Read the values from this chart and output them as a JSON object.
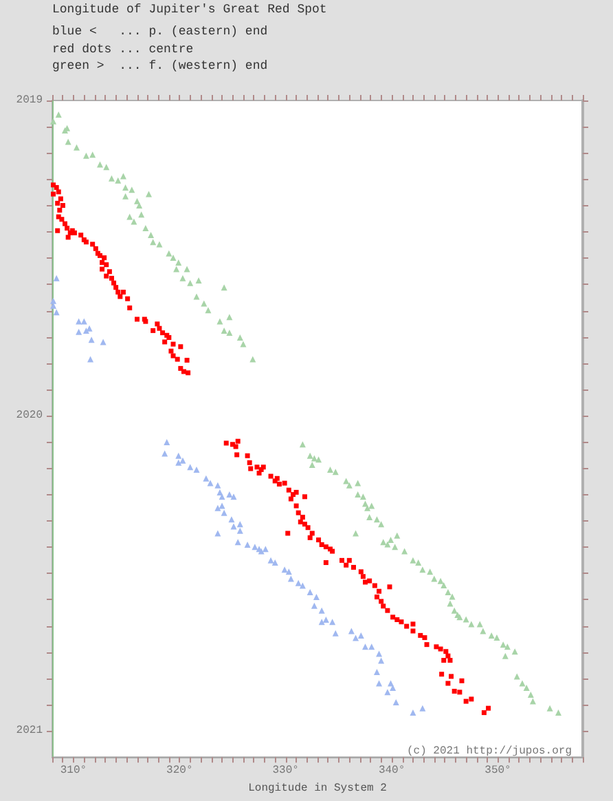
{
  "chart_data": {
    "type": "scatter",
    "title": "Longitude of Jupiter's Great Red Spot",
    "subtitle": "blue <   ... p. (eastern) end\nred dots ... centre\ngreen >  ... f. (western) end",
    "xlabel": "Longitude in System 2",
    "annotations": [
      "(c) 2021 http://jupos.org"
    ],
    "xlim": [
      308,
      358
    ],
    "xticks": [
      {
        "value": 308,
        "label": null
      },
      {
        "value": 309,
        "label": null
      },
      {
        "value": 310,
        "label": "310°"
      },
      {
        "value": 311,
        "label": null
      },
      {
        "value": 312,
        "label": null
      },
      {
        "value": 313,
        "label": null
      },
      {
        "value": 314,
        "label": null
      },
      {
        "value": 315,
        "label": null
      },
      {
        "value": 316,
        "label": null
      },
      {
        "value": 317,
        "label": null
      },
      {
        "value": 318,
        "label": null
      },
      {
        "value": 319,
        "label": null
      },
      {
        "value": 320,
        "label": "320°"
      },
      {
        "value": 321,
        "label": null
      },
      {
        "value": 322,
        "label": null
      },
      {
        "value": 323,
        "label": null
      },
      {
        "value": 324,
        "label": null
      },
      {
        "value": 325,
        "label": null
      },
      {
        "value": 326,
        "label": null
      },
      {
        "value": 327,
        "label": null
      },
      {
        "value": 328,
        "label": null
      },
      {
        "value": 329,
        "label": null
      },
      {
        "value": 330,
        "label": "330°"
      },
      {
        "value": 331,
        "label": null
      },
      {
        "value": 332,
        "label": null
      },
      {
        "value": 333,
        "label": null
      },
      {
        "value": 334,
        "label": null
      },
      {
        "value": 335,
        "label": null
      },
      {
        "value": 336,
        "label": null
      },
      {
        "value": 337,
        "label": null
      },
      {
        "value": 338,
        "label": null
      },
      {
        "value": 339,
        "label": null
      },
      {
        "value": 340,
        "label": "340°"
      },
      {
        "value": 341,
        "label": null
      },
      {
        "value": 342,
        "label": null
      },
      {
        "value": 343,
        "label": null
      },
      {
        "value": 344,
        "label": null
      },
      {
        "value": 345,
        "label": null
      },
      {
        "value": 346,
        "label": null
      },
      {
        "value": 347,
        "label": null
      },
      {
        "value": 348,
        "label": null
      },
      {
        "value": 349,
        "label": null
      },
      {
        "value": 350,
        "label": "350°"
      },
      {
        "value": 351,
        "label": null
      },
      {
        "value": 352,
        "label": null
      },
      {
        "value": 353,
        "label": null
      },
      {
        "value": 354,
        "label": null
      },
      {
        "value": 355,
        "label": null
      },
      {
        "value": 356,
        "label": null
      },
      {
        "value": 357,
        "label": null
      },
      {
        "value": 358,
        "label": null
      }
    ],
    "ylim": [
      2021.083,
      2019
    ],
    "yticks": [
      2019,
      {
        "value": 2019.083,
        "label": null
      },
      {
        "value": 2019.167,
        "label": null
      },
      {
        "value": 2019.25,
        "label": null
      },
      {
        "value": 2019.333,
        "label": null
      },
      {
        "value": 2019.417,
        "label": null
      },
      {
        "value": 2019.5,
        "label": null
      },
      {
        "value": 2019.583,
        "label": null
      },
      {
        "value": 2019.667,
        "label": null
      },
      {
        "value": 2019.75,
        "label": null
      },
      {
        "value": 2019.833,
        "label": null
      },
      {
        "value": 2019.917,
        "label": null
      },
      2020,
      {
        "value": 2020.083,
        "label": null
      },
      {
        "value": 2020.167,
        "label": null
      },
      {
        "value": 2020.25,
        "label": null
      },
      {
        "value": 2020.333,
        "label": null
      },
      {
        "value": 2020.417,
        "label": null
      },
      {
        "value": 2020.5,
        "label": null
      },
      {
        "value": 2020.583,
        "label": null
      },
      {
        "value": 2020.667,
        "label": null
      },
      {
        "value": 2020.75,
        "label": null
      },
      {
        "value": 2020.833,
        "label": null
      },
      {
        "value": 2020.917,
        "label": null
      },
      2021
    ],
    "series": [
      {
        "color": "#a0b8f0",
        "marker": "triangle",
        "x": [
          308.4,
          308.1,
          308.1,
          308.4,
          310.5,
          311.0,
          310.5,
          311.2,
          311.5,
          311.7,
          312.8,
          311.6,
          318.8,
          318.6,
          319.9,
          319.9,
          320.3,
          321.0,
          321.6,
          322.5,
          322.9,
          323.6,
          323.8,
          324.0,
          324.7,
          325.1,
          323.6,
          324.0,
          324.2,
          324.9,
          325.1,
          325.7,
          325.7,
          323.6,
          325.5,
          326.4,
          327.1,
          327.5,
          327.7,
          328.1,
          328.6,
          329.0,
          329.9,
          330.3,
          330.5,
          331.2,
          331.6,
          332.3,
          332.9,
          332.7,
          333.4,
          333.4,
          333.8,
          334.4,
          334.7,
          336.2,
          336.6,
          337.1,
          337.5,
          338.1,
          338.8,
          339.0,
          338.6,
          338.8,
          339.9,
          340.1,
          339.6,
          340.4,
          342.0,
          342.9
        ],
        "values": [
          2019.564,
          2019.636,
          2019.651,
          2019.672,
          2019.701,
          2019.701,
          2019.734,
          2019.73,
          2019.723,
          2019.759,
          2019.766,
          2019.821,
          2020.084,
          2020.12,
          2020.127,
          2020.149,
          2020.142,
          2020.163,
          2020.171,
          2020.199,
          2020.214,
          2020.221,
          2020.243,
          2020.257,
          2020.25,
          2020.257,
          2020.293,
          2020.286,
          2020.308,
          2020.329,
          2020.351,
          2020.344,
          2020.365,
          2020.373,
          2020.401,
          2020.409,
          2020.416,
          2020.423,
          2020.43,
          2020.423,
          2020.459,
          2020.466,
          2020.488,
          2020.495,
          2020.517,
          2020.531,
          2020.539,
          2020.56,
          2020.575,
          2020.603,
          2020.618,
          2020.654,
          2020.647,
          2020.654,
          2020.69,
          2020.683,
          2020.705,
          2020.697,
          2020.733,
          2020.733,
          2020.755,
          2020.777,
          2020.813,
          2020.849,
          2020.849,
          2020.863,
          2020.877,
          2020.909,
          2020.942,
          2020.928
        ]
      },
      {
        "color": "#ff0000",
        "marker": "square",
        "x": [
          308.1,
          308.4,
          308.6,
          308.1,
          308.8,
          308.5,
          309.0,
          308.7,
          308.6,
          308.9,
          309.2,
          308.5,
          309.4,
          309.7,
          309.9,
          309.5,
          310.1,
          310.7,
          311.0,
          311.2,
          311.8,
          312.1,
          312.3,
          312.5,
          312.9,
          312.7,
          313.1,
          312.7,
          313.4,
          313.1,
          313.6,
          313.8,
          314.0,
          314.2,
          314.4,
          314.7,
          315.1,
          315.3,
          316.0,
          316.7,
          316.8,
          317.9,
          318.1,
          317.5,
          318.4,
          318.8,
          319.0,
          318.6,
          319.4,
          320.1,
          319.2,
          319.4,
          319.8,
          320.7,
          320.1,
          320.4,
          320.8,
          324.4,
          325.0,
          325.5,
          325.3,
          326.4,
          325.4,
          326.6,
          326.7,
          327.3,
          327.7,
          327.9,
          327.5,
          328.6,
          329.0,
          329.2,
          329.4,
          329.9,
          330.3,
          330.7,
          331.0,
          331.8,
          330.5,
          331.0,
          331.2,
          331.6,
          331.4,
          331.8,
          332.1,
          330.2,
          332.5,
          332.3,
          333.1,
          333.4,
          333.8,
          334.2,
          333.8,
          334.4,
          335.3,
          335.7,
          336.0,
          336.4,
          337.1,
          337.3,
          337.5,
          337.9,
          338.4,
          338.8,
          338.6,
          339.0,
          339.2,
          339.8,
          339.6,
          340.1,
          340.5,
          340.9,
          342.0,
          341.4,
          342.0,
          342.7,
          343.1,
          343.3,
          344.2,
          344.6,
          345.1,
          345.3,
          345.5,
          344.9,
          344.7,
          345.6,
          345.3,
          346.6,
          345.9,
          346.4,
          347.0,
          347.5,
          348.7,
          349.1
        ],
        "values": [
          2019.268,
          2019.276,
          2019.29,
          2019.297,
          2019.312,
          2019.326,
          2019.333,
          2019.348,
          2019.369,
          2019.377,
          2019.391,
          2019.413,
          2019.405,
          2019.42,
          2019.413,
          2019.434,
          2019.42,
          2019.427,
          2019.442,
          2019.449,
          2019.456,
          2019.47,
          2019.485,
          2019.492,
          2019.499,
          2019.514,
          2019.521,
          2019.535,
          2019.543,
          2019.557,
          2019.564,
          2019.579,
          2019.593,
          2019.608,
          2019.622,
          2019.608,
          2019.629,
          2019.658,
          2019.694,
          2019.694,
          2019.701,
          2019.709,
          2019.723,
          2019.73,
          2019.737,
          2019.745,
          2019.752,
          2019.766,
          2019.773,
          2019.781,
          2019.795,
          2019.81,
          2019.821,
          2019.824,
          2019.85,
          2019.86,
          2019.864,
          2020.087,
          2020.091,
          2020.081,
          2020.098,
          2020.127,
          2020.124,
          2020.149,
          2020.168,
          2020.163,
          2020.171,
          2020.163,
          2020.182,
          2020.192,
          2020.207,
          2020.199,
          2020.217,
          2020.214,
          2020.236,
          2020.25,
          2020.243,
          2020.257,
          2020.264,
          2020.286,
          2020.308,
          2020.322,
          2020.337,
          2020.344,
          2020.355,
          2020.373,
          2020.373,
          2020.387,
          2020.394,
          2020.409,
          2020.416,
          2020.423,
          2020.466,
          2020.43,
          2020.459,
          2020.474,
          2020.459,
          2020.481,
          2020.495,
          2020.51,
          2020.528,
          2020.524,
          2020.539,
          2020.557,
          2020.575,
          2020.589,
          2020.604,
          2020.543,
          2020.618,
          2020.639,
          2020.647,
          2020.654,
          2020.661,
          2020.668,
          2020.683,
          2020.697,
          2020.704,
          2020.726,
          2020.733,
          2020.74,
          2020.748,
          2020.762,
          2020.776,
          2020.776,
          2020.82,
          2020.827,
          2020.849,
          2020.841,
          2020.874,
          2020.877,
          2020.906,
          2020.899,
          2020.942,
          2020.928
        ]
      },
      {
        "color": "#a8d4a8",
        "marker": "triangle",
        "x": [
          308.6,
          308.1,
          309.4,
          309.2,
          309.5,
          310.3,
          311.2,
          311.8,
          312.5,
          313.1,
          313.6,
          314.2,
          314.7,
          314.9,
          315.5,
          316.0,
          317.1,
          314.9,
          316.2,
          315.3,
          315.7,
          316.4,
          316.8,
          317.3,
          317.5,
          318.1,
          319.0,
          319.4,
          319.9,
          319.7,
          320.7,
          320.3,
          321.0,
          321.8,
          321.6,
          322.3,
          322.7,
          324.2,
          323.8,
          324.7,
          324.2,
          324.7,
          325.7,
          326.0,
          326.9,
          331.6,
          332.3,
          332.7,
          333.1,
          332.5,
          334.2,
          334.7,
          335.7,
          336.0,
          336.8,
          336.8,
          337.3,
          337.5,
          337.7,
          338.1,
          337.9,
          338.6,
          339.0,
          339.2,
          336.6,
          339.9,
          339.6,
          340.3,
          340.5,
          341.2,
          342.0,
          342.5,
          342.9,
          343.6,
          344.0,
          344.6,
          344.9,
          345.3,
          345.7,
          345.5,
          345.9,
          346.2,
          346.4,
          347.0,
          347.5,
          348.3,
          348.6,
          349.4,
          349.9,
          350.5,
          350.9,
          351.6,
          350.7,
          351.8,
          352.3,
          352.7,
          353.1,
          353.3,
          354.9,
          355.7
        ],
        "values": [
          2019.045,
          2019.066,
          2019.088,
          2019.095,
          2019.131,
          2019.149,
          2019.175,
          2019.172,
          2019.203,
          2019.211,
          2019.247,
          2019.254,
          2019.24,
          2019.276,
          2019.283,
          2019.319,
          2019.297,
          2019.304,
          2019.333,
          2019.369,
          2019.384,
          2019.362,
          2019.405,
          2019.427,
          2019.449,
          2019.456,
          2019.485,
          2019.499,
          2019.514,
          2019.535,
          2019.535,
          2019.564,
          2019.579,
          2019.571,
          2019.622,
          2019.644,
          2019.665,
          2019.593,
          2019.701,
          2019.687,
          2019.73,
          2019.737,
          2019.752,
          2019.773,
          2019.821,
          2020.091,
          2020.127,
          2020.135,
          2020.139,
          2020.156,
          2020.171,
          2020.178,
          2020.207,
          2020.221,
          2020.214,
          2020.25,
          2020.257,
          2020.279,
          2020.293,
          2020.286,
          2020.322,
          2020.329,
          2020.344,
          2020.401,
          2020.373,
          2020.394,
          2020.408,
          2020.416,
          2020.38,
          2020.43,
          2020.459,
          2020.466,
          2020.488,
          2020.495,
          2020.517,
          2020.524,
          2020.538,
          2020.56,
          2020.574,
          2020.596,
          2020.618,
          2020.632,
          2020.639,
          2020.646,
          2020.661,
          2020.661,
          2020.683,
          2020.697,
          2020.704,
          2020.726,
          2020.733,
          2020.748,
          2020.762,
          2020.827,
          2020.849,
          2020.863,
          2020.885,
          2020.906,
          2020.928,
          2020.942
        ]
      }
    ]
  }
}
